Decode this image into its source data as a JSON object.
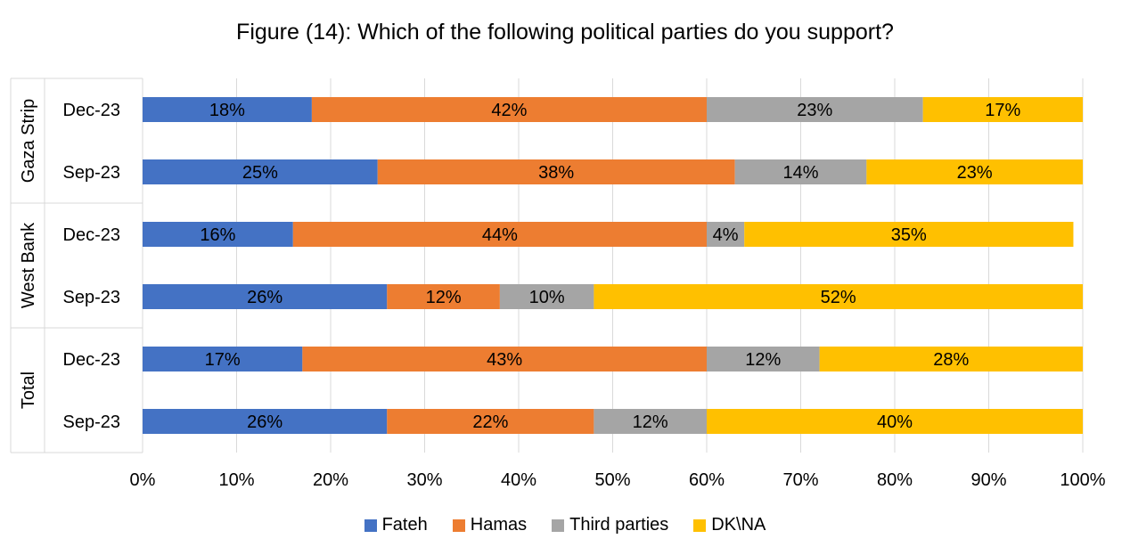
{
  "chart_data": {
    "type": "bar",
    "orientation": "horizontal",
    "stacked": true,
    "title": "Figure (14): Which of the following political parties do you support?",
    "groups": [
      {
        "name": "Gaza Strip",
        "categories": [
          "Dec-23",
          "Sep-23"
        ]
      },
      {
        "name": "West Bank",
        "categories": [
          "Dec-23",
          "Sep-23"
        ]
      },
      {
        "name": "Total",
        "categories": [
          "Dec-23",
          "Sep-23"
        ]
      }
    ],
    "series": [
      {
        "name": "Fateh",
        "color": "#4472C4",
        "values": [
          18,
          25,
          16,
          26,
          17,
          26
        ],
        "labels": [
          "18%",
          "25%",
          "16%",
          "26%",
          "17%",
          "26%"
        ]
      },
      {
        "name": "Hamas",
        "color": "#ED7D31",
        "values": [
          42,
          38,
          44,
          12,
          43,
          22
        ],
        "labels": [
          "42%",
          "38%",
          "44%",
          "12%",
          "43%",
          "22%"
        ]
      },
      {
        "name": "Third parties",
        "color": "#A5A5A5",
        "values": [
          23,
          14,
          4,
          10,
          12,
          12
        ],
        "labels": [
          "23%",
          "14%",
          "4%",
          "10%",
          "12%",
          "12%"
        ]
      },
      {
        "name": "DK\\NA",
        "color": "#FFC000",
        "values": [
          17,
          23,
          35,
          52,
          28,
          40
        ],
        "labels": [
          "17%",
          "23%",
          "35%",
          "52%",
          "28%",
          "40%"
        ]
      }
    ],
    "x_ticks": [
      "0%",
      "10%",
      "20%",
      "30%",
      "40%",
      "50%",
      "60%",
      "70%",
      "80%",
      "90%",
      "100%"
    ],
    "xlim": [
      0,
      100
    ],
    "grid": true,
    "legend_position": "bottom"
  }
}
